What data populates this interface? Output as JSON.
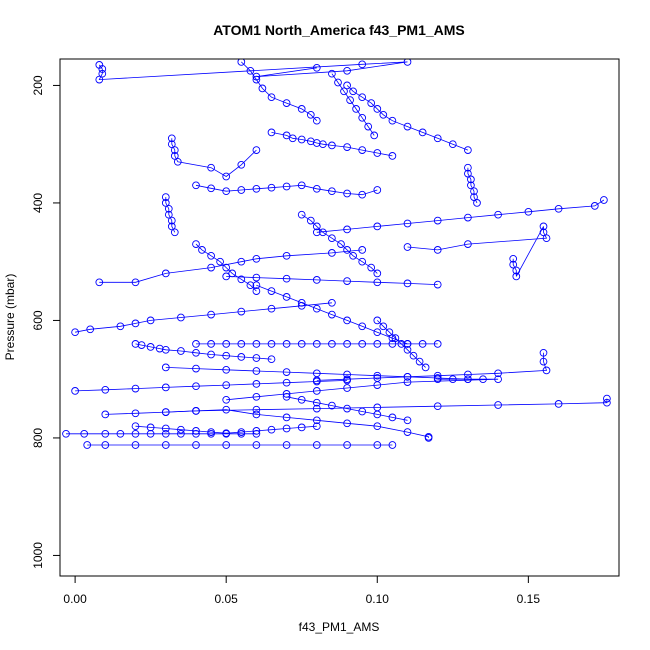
{
  "chart_data": {
    "type": "scatter",
    "title": "ATOM1 North_America f43_PM1_AMS",
    "xlabel": "f43_PM1_AMS",
    "ylabel": "Pressure (mbar)",
    "xlim": [
      -0.005,
      0.18
    ],
    "ylim": [
      1035,
      155
    ],
    "y_reversed": true,
    "x_ticks": [
      {
        "value": 0.0,
        "label": "0.00"
      },
      {
        "value": 0.05,
        "label": "0.05"
      },
      {
        "value": 0.1,
        "label": "0.10"
      },
      {
        "value": 0.15,
        "label": "0.15"
      }
    ],
    "y_ticks": [
      {
        "value": 200,
        "label": "200"
      },
      {
        "value": 400,
        "label": "400"
      },
      {
        "value": 600,
        "label": "600"
      },
      {
        "value": 800,
        "label": "800"
      },
      {
        "value": 1000,
        "label": "1000"
      }
    ],
    "series_color": "#0000ff",
    "marker": "open-circle",
    "connect_points": true,
    "series": [
      {
        "x": [
          0.008,
          0.009,
          0.009,
          0.008,
          0.095,
          0.11,
          0.09,
          0.06,
          0.08
        ],
        "y": [
          165,
          172,
          180,
          190,
          164,
          160,
          175,
          185,
          170
        ]
      },
      {
        "x": [
          0.055,
          0.058,
          0.06,
          0.062,
          0.065,
          0.07,
          0.075,
          0.078,
          0.08
        ],
        "y": [
          160,
          175,
          190,
          205,
          220,
          230,
          240,
          250,
          260
        ]
      },
      {
        "x": [
          0.032,
          0.032,
          0.033,
          0.033,
          0.034,
          0.045,
          0.05,
          0.055,
          0.06
        ],
        "y": [
          290,
          300,
          310,
          320,
          330,
          340,
          355,
          335,
          310
        ]
      },
      {
        "x": [
          0.065,
          0.07,
          0.072,
          0.075,
          0.078,
          0.08,
          0.082,
          0.085,
          0.09,
          0.095,
          0.1,
          0.105
        ],
        "y": [
          280,
          285,
          290,
          292,
          295,
          298,
          300,
          302,
          305,
          310,
          315,
          320
        ]
      },
      {
        "x": [
          0.09,
          0.092,
          0.095,
          0.098,
          0.1,
          0.102,
          0.105,
          0.11,
          0.115,
          0.12,
          0.125,
          0.13
        ],
        "y": [
          200,
          210,
          220,
          230,
          240,
          250,
          260,
          270,
          280,
          290,
          300,
          310
        ]
      },
      {
        "x": [
          0.03,
          0.03,
          0.031,
          0.031,
          0.032,
          0.032,
          0.033
        ],
        "y": [
          390,
          400,
          410,
          420,
          430,
          440,
          450
        ]
      },
      {
        "x": [
          0.04,
          0.045,
          0.05,
          0.055,
          0.06,
          0.065,
          0.07,
          0.075,
          0.08,
          0.085,
          0.09,
          0.095,
          0.1
        ],
        "y": [
          370,
          375,
          380,
          378,
          376,
          374,
          372,
          370,
          376,
          380,
          384,
          386,
          378
        ]
      },
      {
        "x": [
          0.008,
          0.02,
          0.03,
          0.045,
          0.055,
          0.06,
          0.07,
          0.085,
          0.095
        ],
        "y": [
          535,
          535,
          520,
          510,
          500,
          495,
          490,
          485,
          480
        ]
      },
      {
        "x": [
          0.175,
          0.172,
          0.16,
          0.15,
          0.14,
          0.13,
          0.12,
          0.11,
          0.1,
          0.09,
          0.08
        ],
        "y": [
          395,
          405,
          410,
          415,
          420,
          425,
          430,
          435,
          440,
          445,
          450
        ]
      },
      {
        "x": [
          0.145,
          0.145,
          0.146,
          0.146,
          0.155,
          0.155,
          0.156,
          0.13,
          0.12,
          0.11
        ],
        "y": [
          495,
          505,
          515,
          525,
          440,
          450,
          460,
          470,
          480,
          475
        ]
      },
      {
        "x": [
          0.0,
          0.005,
          0.015,
          0.02,
          0.025,
          0.035,
          0.045,
          0.055,
          0.065,
          0.075,
          0.085
        ],
        "y": [
          620,
          615,
          610,
          605,
          600,
          595,
          590,
          585,
          580,
          575,
          570
        ]
      },
      {
        "x": [
          0.02,
          0.022,
          0.025,
          0.028,
          0.03,
          0.035,
          0.04,
          0.045,
          0.05,
          0.055,
          0.06,
          0.065
        ],
        "y": [
          640,
          642,
          645,
          648,
          650,
          652,
          655,
          658,
          660,
          662,
          664,
          666
        ]
      },
      {
        "x": [
          0.04,
          0.045,
          0.05,
          0.055,
          0.06,
          0.065,
          0.07,
          0.075,
          0.08,
          0.085,
          0.09,
          0.095,
          0.1,
          0.105,
          0.11,
          0.115,
          0.12
        ],
        "y": [
          640,
          640,
          640,
          640,
          640,
          640,
          640,
          640,
          640,
          640,
          640,
          640,
          640,
          640,
          640,
          640,
          640
        ]
      },
      {
        "x": [
          0.155,
          0.155,
          0.156,
          0.14,
          0.13,
          0.12,
          0.11,
          0.1,
          0.09,
          0.08
        ],
        "y": [
          655,
          670,
          685,
          690,
          692,
          694,
          696,
          698,
          700,
          702
        ]
      },
      {
        "x": [
          0.0,
          0.01,
          0.02,
          0.03,
          0.04,
          0.05,
          0.06,
          0.07,
          0.08,
          0.09
        ],
        "y": [
          720,
          718,
          716,
          714,
          712,
          710,
          708,
          706,
          704,
          702
        ]
      },
      {
        "x": [
          0.12,
          0.125,
          0.13,
          0.135,
          0.14,
          0.11,
          0.1,
          0.09,
          0.08,
          0.07,
          0.06,
          0.05
        ],
        "y": [
          700,
          700,
          700,
          700,
          700,
          705,
          710,
          715,
          720,
          725,
          730,
          735
        ]
      },
      {
        "x": [
          0.176,
          0.176,
          0.16,
          0.14,
          0.12,
          0.1,
          0.08,
          0.06,
          0.04,
          0.03
        ],
        "y": [
          733,
          740,
          742,
          744,
          746,
          748,
          750,
          752,
          754,
          756
        ]
      },
      {
        "x": [
          0.01,
          0.02,
          0.03,
          0.04,
          0.05,
          0.06,
          0.07,
          0.08,
          0.09,
          0.1,
          0.11,
          0.117,
          0.117
        ],
        "y": [
          760,
          758,
          756,
          754,
          752,
          760,
          765,
          770,
          775,
          780,
          790,
          798,
          800
        ]
      },
      {
        "x": [
          -0.003,
          0.003,
          0.01,
          0.015,
          0.02,
          0.025,
          0.03,
          0.035,
          0.04,
          0.045,
          0.05,
          0.055,
          0.06
        ],
        "y": [
          793,
          793,
          793,
          793,
          793,
          793,
          793,
          793,
          793,
          793,
          793,
          793,
          793
        ]
      },
      {
        "x": [
          0.004,
          0.01,
          0.02,
          0.03,
          0.04,
          0.05,
          0.06,
          0.07,
          0.08,
          0.09,
          0.1,
          0.105
        ],
        "y": [
          812,
          812,
          812,
          812,
          812,
          812,
          812,
          812,
          812,
          812,
          812,
          812
        ]
      },
      {
        "x": [
          0.02,
          0.025,
          0.03,
          0.035,
          0.04,
          0.045,
          0.05,
          0.055,
          0.06,
          0.065,
          0.07,
          0.075,
          0.08
        ],
        "y": [
          780,
          782,
          784,
          786,
          788,
          790,
          792,
          790,
          788,
          786,
          784,
          782,
          780
        ]
      },
      {
        "x": [
          0.06,
          0.065,
          0.07,
          0.075,
          0.08,
          0.085,
          0.09,
          0.095,
          0.1,
          0.105,
          0.11
        ],
        "y": [
          540,
          550,
          560,
          570,
          580,
          590,
          600,
          610,
          620,
          630,
          640
        ]
      },
      {
        "x": [
          0.075,
          0.078,
          0.08,
          0.082,
          0.085,
          0.088,
          0.09,
          0.092,
          0.095,
          0.098,
          0.1
        ],
        "y": [
          420,
          430,
          440,
          450,
          460,
          470,
          480,
          490,
          500,
          510,
          520
        ]
      },
      {
        "x": [
          0.04,
          0.042,
          0.045,
          0.048,
          0.05,
          0.052,
          0.055,
          0.058,
          0.06
        ],
        "y": [
          470,
          480,
          490,
          500,
          510,
          520,
          530,
          540,
          550
        ]
      },
      {
        "x": [
          0.13,
          0.13,
          0.131,
          0.131,
          0.132,
          0.132,
          0.133
        ],
        "y": [
          340,
          350,
          360,
          370,
          380,
          390,
          400
        ]
      },
      {
        "x": [
          0.1,
          0.102,
          0.104,
          0.106,
          0.108,
          0.11,
          0.112,
          0.114,
          0.116
        ],
        "y": [
          600,
          610,
          620,
          630,
          640,
          650,
          660,
          670,
          680
        ]
      },
      {
        "x": [
          0.05,
          0.06,
          0.07,
          0.08,
          0.09,
          0.1,
          0.11,
          0.12
        ],
        "y": [
          525,
          527,
          529,
          531,
          533,
          535,
          537,
          539
        ]
      },
      {
        "x": [
          0.085,
          0.087,
          0.089,
          0.091,
          0.093,
          0.095,
          0.097,
          0.099
        ],
        "y": [
          180,
          195,
          210,
          225,
          240,
          255,
          270,
          285
        ]
      },
      {
        "x": [
          0.07,
          0.075,
          0.08,
          0.085,
          0.09,
          0.095,
          0.1,
          0.105,
          0.11
        ],
        "y": [
          730,
          735,
          740,
          745,
          750,
          755,
          760,
          765,
          770
        ]
      },
      {
        "x": [
          0.03,
          0.04,
          0.05,
          0.06,
          0.07,
          0.08,
          0.09,
          0.1,
          0.11,
          0.12,
          0.13
        ],
        "y": [
          680,
          682,
          684,
          686,
          688,
          690,
          692,
          694,
          696,
          698,
          700
        ]
      }
    ]
  }
}
